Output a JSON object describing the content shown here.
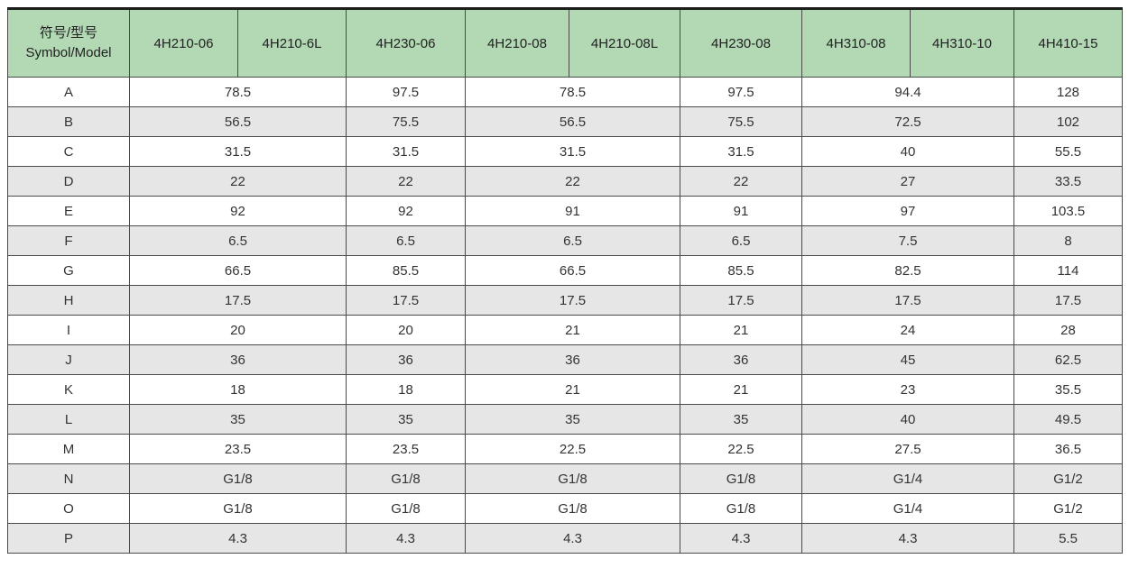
{
  "colors": {
    "header_bg": "#b2d8b4",
    "stripe_bg": "#e6e6e6",
    "border": "#4a4a4a",
    "text": "#333333"
  },
  "table": {
    "header": {
      "symbol_cn": "符号/型号",
      "symbol_en": "Symbol/Model",
      "models": [
        "4H210-06",
        "4H210-6L",
        "4H230-06",
        "4H210-08",
        "4H210-08L",
        "4H230-08",
        "4H310-08",
        "4H310-10",
        "4H410-15"
      ]
    },
    "value_colspans": [
      2,
      1,
      2,
      1,
      2,
      1
    ],
    "rows": [
      {
        "symbol": "A",
        "values": [
          "78.5",
          "97.5",
          "78.5",
          "97.5",
          "94.4",
          "128"
        ]
      },
      {
        "symbol": "B",
        "values": [
          "56.5",
          "75.5",
          "56.5",
          "75.5",
          "72.5",
          "102"
        ]
      },
      {
        "symbol": "C",
        "values": [
          "31.5",
          "31.5",
          "31.5",
          "31.5",
          "40",
          "55.5"
        ]
      },
      {
        "symbol": "D",
        "values": [
          "22",
          "22",
          "22",
          "22",
          "27",
          "33.5"
        ]
      },
      {
        "symbol": "E",
        "values": [
          "92",
          "92",
          "91",
          "91",
          "97",
          "103.5"
        ]
      },
      {
        "symbol": "F",
        "values": [
          "6.5",
          "6.5",
          "6.5",
          "6.5",
          "7.5",
          "8"
        ]
      },
      {
        "symbol": "G",
        "values": [
          "66.5",
          "85.5",
          "66.5",
          "85.5",
          "82.5",
          "114"
        ]
      },
      {
        "symbol": "H",
        "values": [
          "17.5",
          "17.5",
          "17.5",
          "17.5",
          "17.5",
          "17.5"
        ]
      },
      {
        "symbol": "I",
        "values": [
          "20",
          "20",
          "21",
          "21",
          "24",
          "28"
        ]
      },
      {
        "symbol": "J",
        "values": [
          "36",
          "36",
          "36",
          "36",
          "45",
          "62.5"
        ]
      },
      {
        "symbol": "K",
        "values": [
          "18",
          "18",
          "21",
          "21",
          "23",
          "35.5"
        ]
      },
      {
        "symbol": "L",
        "values": [
          "35",
          "35",
          "35",
          "35",
          "40",
          "49.5"
        ]
      },
      {
        "symbol": "M",
        "values": [
          "23.5",
          "23.5",
          "22.5",
          "22.5",
          "27.5",
          "36.5"
        ]
      },
      {
        "symbol": "N",
        "values": [
          "G1/8",
          "G1/8",
          "G1/8",
          "G1/8",
          "G1/4",
          "G1/2"
        ]
      },
      {
        "symbol": "O",
        "values": [
          "G1/8",
          "G1/8",
          "G1/8",
          "G1/8",
          "G1/4",
          "G1/2"
        ]
      },
      {
        "symbol": "P",
        "values": [
          "4.3",
          "4.3",
          "4.3",
          "4.3",
          "4.3",
          "5.5"
        ]
      }
    ]
  }
}
